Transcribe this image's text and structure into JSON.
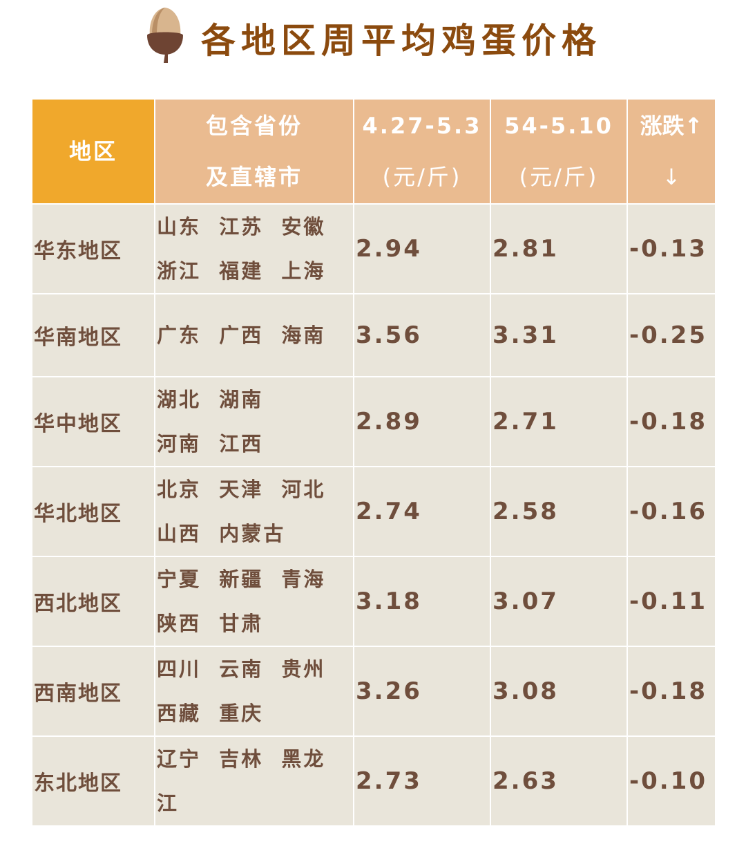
{
  "title": "各地区周平均鸡蛋价格",
  "colors": {
    "title": "#8b4a0e",
    "header_region": "#f0a82c",
    "header": "#eabb90",
    "body": "#e9e5da",
    "body_text": "#6f4e3c"
  },
  "table": {
    "headers": [
      {
        "line1": "地区",
        "line2": ""
      },
      {
        "line1": "包含省份",
        "line2": "及直辖市"
      },
      {
        "line1": "4.27-5.3",
        "line2": "(元/斤)"
      },
      {
        "line1": "54-5.10",
        "line2": "(元/斤)"
      },
      {
        "line1": "涨跌↑",
        "line2": "↓"
      }
    ],
    "rows": [
      {
        "region": "华东地区",
        "provinces_line1": "山东  江苏  安徽",
        "provinces_line2": "浙江  福建  上海",
        "prev": "2.94",
        "curr": "2.81",
        "change": "-0.13"
      },
      {
        "region": "华南地区",
        "provinces_line1": "广东  广西  海南",
        "provinces_line2": "",
        "prev": "3.56",
        "curr": "3.31",
        "change": "-0.25"
      },
      {
        "region": "华中地区",
        "provinces_line1": "湖北  湖南",
        "provinces_line2": "河南  江西",
        "prev": "2.89",
        "curr": "2.71",
        "change": "-0.18"
      },
      {
        "region": "华北地区",
        "provinces_line1": "北京  天津  河北",
        "provinces_line2": "山西  内蒙古",
        "prev": "2.74",
        "curr": "2.58",
        "change": "-0.16"
      },
      {
        "region": "西北地区",
        "provinces_line1": "宁夏  新疆  青海",
        "provinces_line2": "陕西  甘肃",
        "prev": "3.18",
        "curr": "3.07",
        "change": "-0.11"
      },
      {
        "region": "西南地区",
        "provinces_line1": "四川  云南  贵州",
        "provinces_line2": "西藏  重庆",
        "prev": "3.26",
        "curr": "3.08",
        "change": "-0.18"
      },
      {
        "region": "东北地区",
        "provinces_line1": "辽宁  吉林  黑龙",
        "provinces_line2": "江",
        "prev": "2.73",
        "curr": "2.63",
        "change": "-0.10"
      }
    ]
  }
}
